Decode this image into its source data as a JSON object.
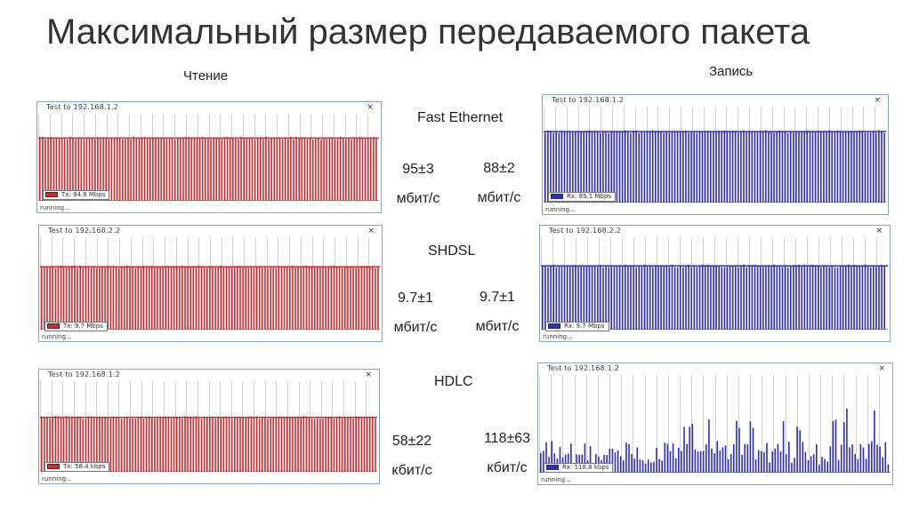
{
  "slide": {
    "title": "Максимальный размер передаваемого пакета",
    "read_label": "Чтение",
    "write_label": "Запись"
  },
  "colors": {
    "tx": "#d9262b",
    "rx": "#2b2bd0",
    "grid": "#d2d2d2",
    "frame": "#8aa6c8"
  },
  "rows": [
    {
      "label": "Fast Ethernet",
      "read": {
        "window_title": "Test to 192.168.1.2",
        "legend": "Tx: 94.8 Mbps",
        "status": "running...",
        "close_icon": "×",
        "level": 0.72,
        "metric_value": "95±3",
        "metric_unit": "мбит/с"
      },
      "write": {
        "window_title": "Test to 192.168.1.2",
        "legend": "Rx: 85.1 Mbps",
        "status": "running...",
        "close_icon": "×",
        "level": 0.74,
        "metric_value": "88±2",
        "metric_unit": "мбит/с"
      }
    },
    {
      "label": "SHDSL",
      "read": {
        "window_title": "Test to 192.168.2.2",
        "legend": "Tx: 9.7 Mbps",
        "status": "running...",
        "close_icon": "×",
        "level": 0.68,
        "metric_value": "9.7±1",
        "metric_unit": "мбит/с"
      },
      "write": {
        "window_title": "Test to 192.168.2.2",
        "legend": "Rx: 9.7 Mbps",
        "status": "running...",
        "close_icon": "×",
        "level": 0.69,
        "metric_value": "9.7±1",
        "metric_unit": "мбит/с"
      }
    },
    {
      "label": "HDLC",
      "read": {
        "window_title": "Test to 192.168.1.2",
        "legend": "Tx: 58.4 kbps",
        "status": "running...",
        "close_icon": "×",
        "level": 0.6,
        "metric_value": "58±22",
        "metric_unit": "кбит/с"
      },
      "write": {
        "window_title": "Test to 192.168.1.2",
        "legend": "Rx: 118.8 kbps",
        "status": "running...",
        "close_icon": "×",
        "level": 0.3,
        "metric_value": "118±63",
        "metric_unit": "кбит/с"
      }
    }
  ]
}
